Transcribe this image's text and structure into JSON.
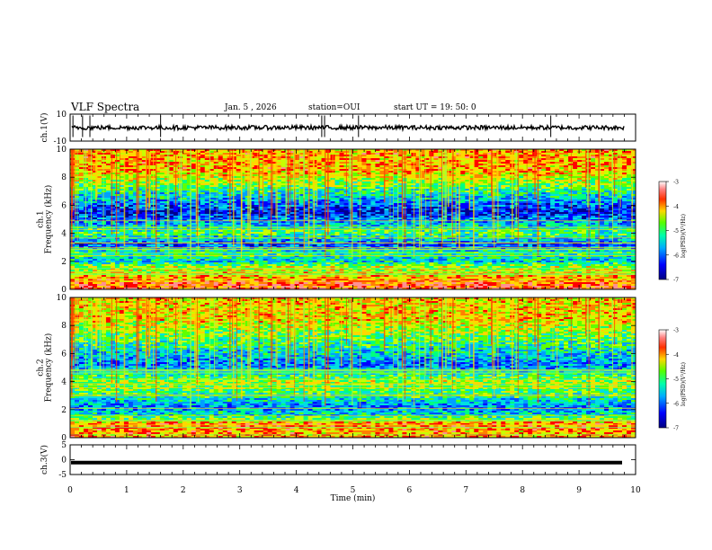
{
  "header": {
    "title": "VLF Spectra",
    "date": "Jan. 5 , 2026",
    "station": "station=OUI",
    "start": "start  UT =   19: 50: 0"
  },
  "chart_data": [
    {
      "type": "line",
      "panel": "ch1-waveform",
      "ylabel": "ch.1(V)",
      "ylim": [
        -10,
        10
      ],
      "yticks": [
        "10",
        "-10"
      ],
      "baseline": 0,
      "series_color": "#000000",
      "spikes_min": [
        0.05,
        0.22,
        0.35,
        1.6,
        4.45,
        4.5,
        5.1,
        8.5
      ]
    },
    {
      "type": "heatmap",
      "panel": "ch1-spectrogram",
      "ylabel": "ch.1\nFrequency  (kHz)",
      "ylim": [
        0,
        10
      ],
      "yticks": [
        "0",
        "2",
        "4",
        "6",
        "8",
        "10"
      ],
      "colorbar": {
        "label": "log(PSD)(V²/Hz)",
        "range": [
          -7,
          -3
        ],
        "ticks": [
          "-3",
          "-4",
          "-5",
          "-6",
          "-7"
        ]
      },
      "bands_khz": [
        {
          "f": 0.4,
          "level": -3.6
        },
        {
          "f": 1.0,
          "level": -4.2
        },
        {
          "f": 1.6,
          "level": -4.6
        },
        {
          "f": 2.0,
          "level": -5.6
        },
        {
          "f": 2.6,
          "level": -5.2
        },
        {
          "f": 3.2,
          "level": -6.2
        },
        {
          "f": 4.0,
          "level": -5.0
        },
        {
          "f": 5.5,
          "level": -6.5
        },
        {
          "f": 8.5,
          "level": -4.0
        }
      ]
    },
    {
      "type": "heatmap",
      "panel": "ch2-spectrogram",
      "ylabel": "ch.2\nFrequency  (kHz)",
      "ylim": [
        0,
        10
      ],
      "yticks": [
        "0",
        "2",
        "4",
        "6",
        "8",
        "10"
      ],
      "colorbar": {
        "label": "log(PSD)(V²/Hz)",
        "range": [
          -7,
          -3
        ],
        "ticks": [
          "-3",
          "-4",
          "-5",
          "-6",
          "-7"
        ]
      },
      "bands_khz": [
        {
          "f": 0.4,
          "level": -4.0
        },
        {
          "f": 1.0,
          "level": -3.8
        },
        {
          "f": 1.6,
          "level": -5.4
        },
        {
          "f": 2.2,
          "level": -6.0
        },
        {
          "f": 3.2,
          "level": -5.0
        },
        {
          "f": 4.0,
          "level": -4.6
        },
        {
          "f": 5.2,
          "level": -6.0
        },
        {
          "f": 8.5,
          "level": -4.2
        }
      ]
    },
    {
      "type": "line",
      "panel": "ch3-waveform",
      "ylabel": "ch.3(V)",
      "ylim": [
        -5,
        5
      ],
      "yticks": [
        "5",
        "0",
        "-5"
      ],
      "value": -1.0,
      "xlabel": "Time  (min)",
      "xlim": [
        0,
        10
      ],
      "xticks": [
        "0",
        "1",
        "2",
        "3",
        "4",
        "5",
        "6",
        "7",
        "8",
        "9",
        "10"
      ]
    }
  ],
  "colors": {
    "colormap": [
      "#0000c8",
      "#0050ff",
      "#00b4ff",
      "#00e6c8",
      "#3cff3c",
      "#b4ff00",
      "#ffd700",
      "#ff8000",
      "#ff0000",
      "#ffffff"
    ]
  }
}
